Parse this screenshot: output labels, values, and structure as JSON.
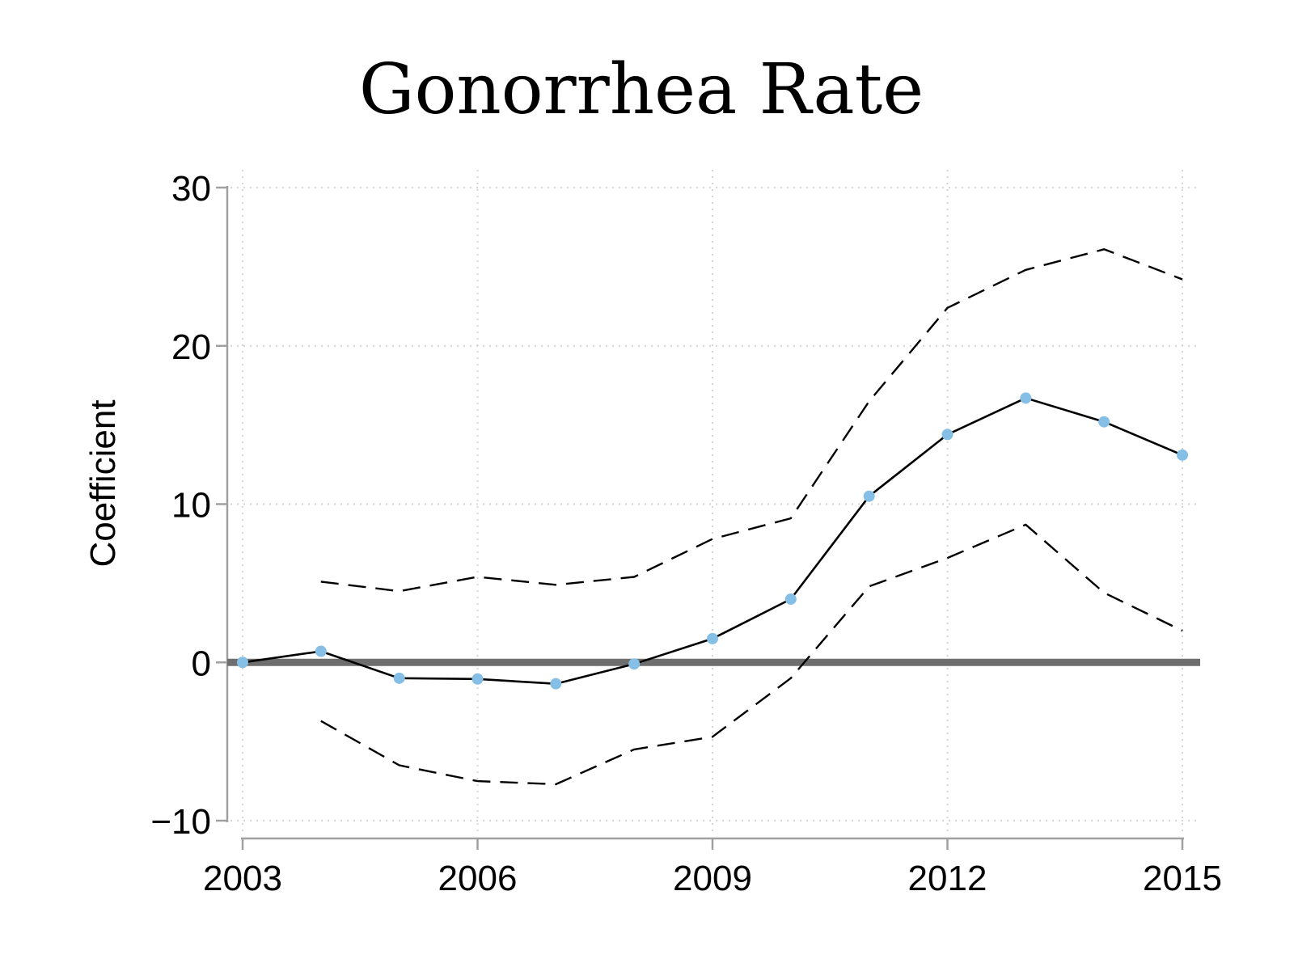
{
  "chart_data": {
    "type": "line",
    "title": "Gonorrhea Rate",
    "xlabel": "",
    "ylabel": "Coefficient",
    "xlim": [
      2003,
      2015
    ],
    "ylim": [
      -10,
      30
    ],
    "x_ticks": [
      "2003",
      "2006",
      "2009",
      "2012",
      "2015"
    ],
    "y_ticks": [
      "30",
      "20",
      "10",
      "0",
      "−10"
    ],
    "grid": true,
    "reference_line": 0,
    "x": [
      2003,
      2004,
      2005,
      2006,
      2007,
      2008,
      2009,
      2010,
      2011,
      2012,
      2013,
      2014,
      2015
    ],
    "series": [
      {
        "values": [
          0,
          0.7,
          -1.0,
          -1.05,
          -1.35,
          -0.1,
          1.5,
          4.0,
          10.5,
          14.4,
          16.7,
          15.2,
          13.1
        ],
        "style": "solid",
        "markers": true
      },
      {
        "values": [
          null,
          5.1,
          4.5,
          5.4,
          4.9,
          5.4,
          7.8,
          9.1,
          16.5,
          22.4,
          24.8,
          26.1,
          24.2
        ],
        "style": "dashed"
      },
      {
        "values": [
          null,
          -3.7,
          -6.5,
          -7.5,
          -7.7,
          -5.5,
          -4.7,
          -1.0,
          4.8,
          6.6,
          8.7,
          4.4,
          2.0
        ],
        "style": "dashed"
      }
    ],
    "colors": {
      "point_line": "#000000",
      "marker": "#86bfe6",
      "ci_line": "#000000",
      "zero_line": "#6e6e6e",
      "axis": "#a0a0a0",
      "grid": "#d4d4d4"
    }
  }
}
